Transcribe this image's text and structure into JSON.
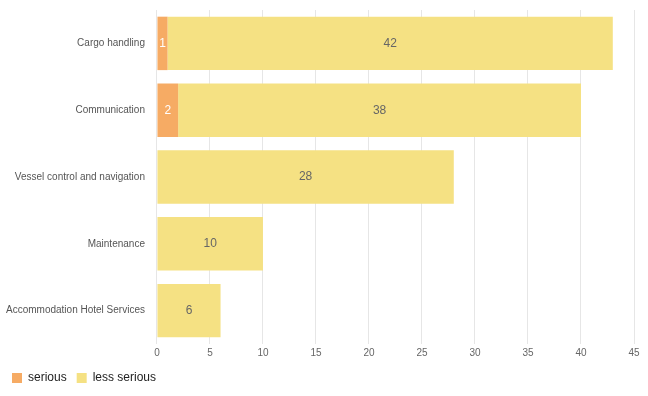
{
  "chart_data": {
    "type": "bar",
    "orientation": "horizontal",
    "stacked": true,
    "categories": [
      "Cargo handling",
      "Communication",
      "Vessel control and navigation",
      "Maintenance",
      "Accommodation Hotel Services"
    ],
    "series": [
      {
        "name": "serious",
        "color": "#f6ab64",
        "values": [
          1,
          2,
          0,
          0,
          0
        ]
      },
      {
        "name": "less serious",
        "color": "#f5e183",
        "values": [
          42,
          38,
          28,
          10,
          6
        ]
      }
    ],
    "xlim": [
      0,
      45
    ],
    "xticks": [
      0,
      5,
      10,
      15,
      20,
      25,
      30,
      35,
      40,
      45
    ],
    "grid": true,
    "legend": "bottom-left",
    "data_labels": true
  }
}
